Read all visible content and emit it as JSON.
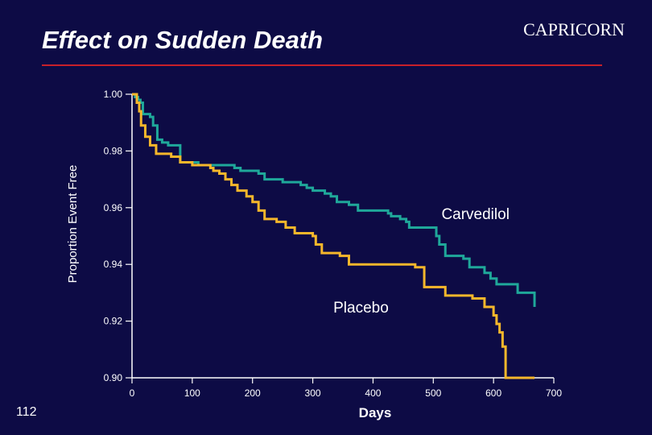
{
  "slide": {
    "title": "Effect on Sudden Death",
    "study": "CAPRICORN",
    "number": "112"
  },
  "colors": {
    "background": "#0d0b45",
    "title_rule": "#c8202a",
    "carvedilol": "#1fa89a",
    "placebo": "#f5b72b",
    "axis": "#ffffff"
  },
  "chart_data": {
    "type": "line",
    "title": "Effect on Sudden Death",
    "xlabel": "Days",
    "ylabel": "Proportion Event Free",
    "xlim": [
      0,
      700
    ],
    "ylim": [
      0.9,
      1.0
    ],
    "x_ticks": [
      0,
      100,
      200,
      300,
      400,
      500,
      600,
      700
    ],
    "y_ticks": [
      1.0,
      0.98,
      0.96,
      0.94,
      0.92,
      0.9
    ],
    "y_tick_labels": [
      "1.00",
      "0.98",
      "0.96",
      "0.94",
      "0.92",
      "0.90"
    ],
    "series": [
      {
        "name": "Carvedilol",
        "step": true,
        "points": [
          [
            0,
            1.0
          ],
          [
            5,
            0.999
          ],
          [
            10,
            0.998
          ],
          [
            14,
            0.997
          ],
          [
            18,
            0.993
          ],
          [
            30,
            0.992
          ],
          [
            35,
            0.989
          ],
          [
            42,
            0.984
          ],
          [
            50,
            0.983
          ],
          [
            60,
            0.982
          ],
          [
            80,
            0.976
          ],
          [
            110,
            0.975
          ],
          [
            170,
            0.974
          ],
          [
            180,
            0.973
          ],
          [
            200,
            0.973
          ],
          [
            210,
            0.972
          ],
          [
            220,
            0.97
          ],
          [
            250,
            0.969
          ],
          [
            280,
            0.968
          ],
          [
            290,
            0.967
          ],
          [
            300,
            0.966
          ],
          [
            320,
            0.965
          ],
          [
            330,
            0.964
          ],
          [
            340,
            0.962
          ],
          [
            360,
            0.961
          ],
          [
            375,
            0.959
          ],
          [
            420,
            0.959
          ],
          [
            425,
            0.958
          ],
          [
            430,
            0.957
          ],
          [
            445,
            0.956
          ],
          [
            455,
            0.955
          ],
          [
            460,
            0.953
          ],
          [
            500,
            0.953
          ],
          [
            505,
            0.95
          ],
          [
            510,
            0.947
          ],
          [
            520,
            0.943
          ],
          [
            550,
            0.942
          ],
          [
            560,
            0.939
          ],
          [
            585,
            0.937
          ],
          [
            595,
            0.935
          ],
          [
            605,
            0.933
          ],
          [
            640,
            0.93
          ],
          [
            668,
            0.93
          ],
          [
            668,
            0.925
          ]
        ]
      },
      {
        "name": "Placebo",
        "step": true,
        "points": [
          [
            0,
            1.0
          ],
          [
            8,
            0.997
          ],
          [
            12,
            0.994
          ],
          [
            15,
            0.989
          ],
          [
            22,
            0.985
          ],
          [
            30,
            0.982
          ],
          [
            40,
            0.979
          ],
          [
            65,
            0.978
          ],
          [
            80,
            0.976
          ],
          [
            100,
            0.975
          ],
          [
            130,
            0.974
          ],
          [
            135,
            0.973
          ],
          [
            145,
            0.972
          ],
          [
            155,
            0.97
          ],
          [
            165,
            0.968
          ],
          [
            175,
            0.966
          ],
          [
            190,
            0.964
          ],
          [
            200,
            0.962
          ],
          [
            210,
            0.959
          ],
          [
            220,
            0.956
          ],
          [
            240,
            0.955
          ],
          [
            255,
            0.953
          ],
          [
            270,
            0.951
          ],
          [
            300,
            0.95
          ],
          [
            305,
            0.947
          ],
          [
            315,
            0.944
          ],
          [
            345,
            0.943
          ],
          [
            360,
            0.94
          ],
          [
            470,
            0.939
          ],
          [
            485,
            0.932
          ],
          [
            510,
            0.932
          ],
          [
            520,
            0.929
          ],
          [
            565,
            0.928
          ],
          [
            585,
            0.925
          ],
          [
            600,
            0.922
          ],
          [
            605,
            0.919
          ],
          [
            610,
            0.916
          ],
          [
            615,
            0.911
          ],
          [
            620,
            0.9
          ],
          [
            668,
            0.9
          ]
        ]
      }
    ],
    "annotations": [
      {
        "text": "Carvedilol",
        "series": "Carvedilol",
        "x": 570,
        "y": 0.956
      },
      {
        "text": "Placebo",
        "series": "Placebo",
        "x": 380,
        "y": 0.923
      }
    ]
  }
}
